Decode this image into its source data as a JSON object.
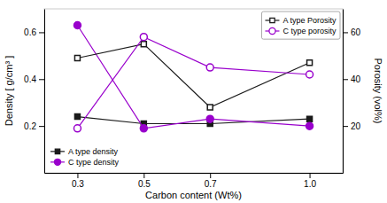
{
  "chart_data": {
    "type": "line",
    "x_label": "Carbon content (Wt%)",
    "y_label": "Density [ g/cm³ ]",
    "y2_label": "Porosity (vol%)",
    "x": [
      0.3,
      0.5,
      0.7,
      1.0
    ],
    "series": [
      {
        "name": "A type density",
        "color": "#1a1a1a",
        "marker": "square",
        "axis": "y",
        "values": [
          0.24,
          0.21,
          0.21,
          0.23
        ]
      },
      {
        "name": "C type density",
        "color": "#9900CC",
        "marker": "circle",
        "axis": "y",
        "values": [
          0.63,
          0.19,
          0.23,
          0.2
        ]
      },
      {
        "name": "A type Porosity",
        "color": "#1a1a1a",
        "marker": "square-open",
        "axis": "y2",
        "values": [
          49,
          55,
          28,
          47
        ]
      },
      {
        "name": "C type porosity",
        "color": "#9900CC",
        "marker": "circle-open",
        "axis": "y2",
        "values": [
          19,
          58,
          45,
          42
        ]
      }
    ],
    "xlim": [
      0.2,
      1.1
    ],
    "xticks": [
      0.3,
      0.5,
      0.7,
      {
        "value": 1.0,
        "label": "1.0"
      }
    ],
    "ylim": [
      0.0,
      0.7
    ],
    "yticks": [
      0.2,
      0.4,
      0.6
    ],
    "y2lim": [
      0,
      70
    ],
    "y2ticks": [
      20,
      40,
      60
    ],
    "grid": false,
    "legend": "upper right"
  }
}
